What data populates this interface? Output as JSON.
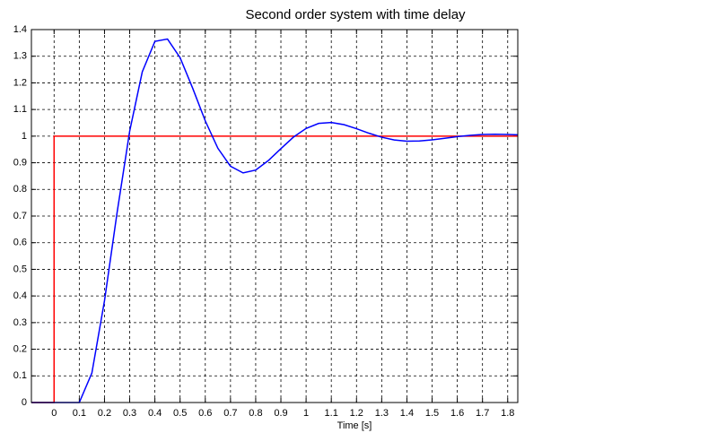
{
  "chart_data": {
    "type": "line",
    "title": "Second order system with time delay",
    "x_label": "Time [s]",
    "xlim": [
      -0.09,
      1.84
    ],
    "ylim": [
      0,
      1.4
    ],
    "xticks": [
      0,
      0.1,
      0.2,
      0.3,
      0.4,
      0.5,
      0.6,
      0.7,
      0.8,
      0.9,
      1,
      1.1,
      1.2,
      1.3,
      1.4,
      1.5,
      1.6,
      1.7,
      1.8
    ],
    "yticks": [
      0,
      0.1,
      0.2,
      0.3,
      0.4,
      0.5,
      0.6,
      0.7,
      0.8,
      0.9,
      1,
      1.1,
      1.2,
      1.3,
      1.4
    ],
    "grid": true,
    "series": [
      {
        "color": "#ff0000",
        "x": [
          -0.09,
          0,
          0,
          1.84
        ],
        "values": [
          0,
          0,
          1,
          1
        ]
      },
      {
        "color": "#0000ff",
        "x": [
          -0.09,
          0,
          0.1,
          0.15,
          0.2,
          0.25,
          0.3,
          0.35,
          0.4,
          0.45,
          0.5,
          0.55,
          0.6,
          0.65,
          0.7,
          0.75,
          0.8,
          0.85,
          0.9,
          0.95,
          1,
          1.05,
          1.1,
          1.15,
          1.2,
          1.25,
          1.3,
          1.35,
          1.4,
          1.45,
          1.5,
          1.55,
          1.6,
          1.65,
          1.7,
          1.75,
          1.8,
          1.84
        ],
        "values": [
          0,
          0,
          0,
          0.111,
          0.382,
          0.713,
          1.019,
          1.2415,
          1.3556,
          1.3645,
          1.2946,
          1.1798,
          1.0571,
          0.9545,
          0.8869,
          0.8619,
          0.8727,
          0.9081,
          0.9531,
          0.9965,
          1.0288,
          1.0478,
          1.0513,
          1.0432,
          1.028,
          1.0108,
          0.996,
          0.9857,
          0.9812,
          0.9818,
          0.986,
          0.992,
          0.9981,
          1.003,
          1.0061,
          1.007,
          1.0063,
          1.005
        ]
      }
    ]
  }
}
